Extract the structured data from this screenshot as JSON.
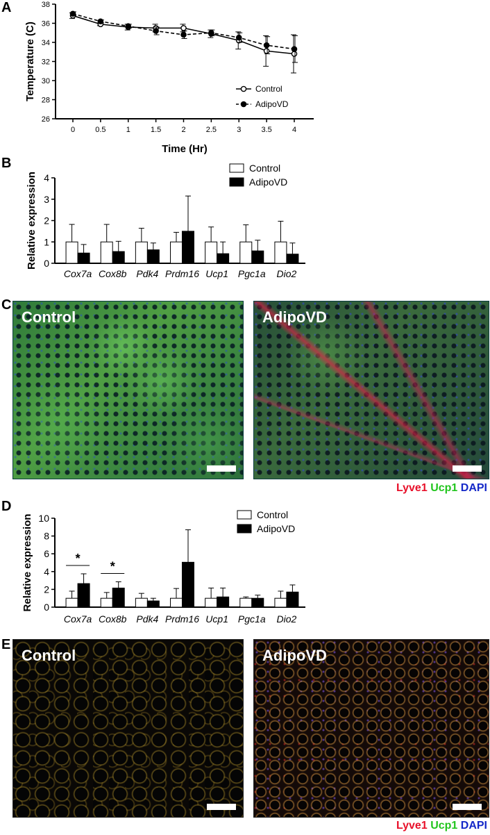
{
  "panels": {
    "a": "A",
    "b": "B",
    "c": "C",
    "d": "D",
    "e": "E"
  },
  "chart_data": [
    {
      "panel": "A",
      "type": "line",
      "xlabel": "Time (Hr)",
      "ylabel": "Temperature (C)",
      "x": [
        0,
        0.5,
        1,
        1.5,
        2,
        2.5,
        3,
        3.5,
        4
      ],
      "xticklabels": [
        "0",
        "0.5",
        "1",
        "1.5",
        "2",
        "2.5",
        "3",
        "3.5",
        "4"
      ],
      "yticks": [
        26,
        28,
        30,
        32,
        34,
        36,
        38
      ],
      "ylim": [
        26,
        38
      ],
      "legend_position": "bottom-right",
      "series": [
        {
          "name": "Control",
          "style": "solid-open-circle",
          "values": [
            36.8,
            35.9,
            35.6,
            35.5,
            35.5,
            34.9,
            34.2,
            33.1,
            32.8
          ],
          "errors": [
            0.3,
            0.15,
            0.3,
            0.4,
            0.4,
            0.4,
            0.9,
            1.6,
            2.0
          ]
        },
        {
          "name": "AdipoVD",
          "style": "dashed-filled-circle",
          "values": [
            37.0,
            36.2,
            35.7,
            35.2,
            34.8,
            35.0,
            34.5,
            33.7,
            33.3
          ],
          "errors": [
            0.2,
            0.15,
            0.2,
            0.4,
            0.4,
            0.3,
            0.5,
            0.9,
            1.4
          ]
        }
      ]
    },
    {
      "panel": "B",
      "type": "bar",
      "ylabel": "Relative expression",
      "categories": [
        "Cox7a",
        "Cox8b",
        "Pdk4",
        "Prdm16",
        "Ucp1",
        "Pgc1a",
        "Dio2"
      ],
      "yticks": [
        0,
        1,
        2,
        3,
        4
      ],
      "ylim": [
        0,
        4
      ],
      "legend_position": "top-right",
      "series": [
        {
          "name": "Control",
          "fill": "white",
          "values": [
            1.0,
            1.0,
            1.0,
            1.0,
            1.0,
            1.0,
            1.0
          ],
          "errors": [
            0.82,
            0.82,
            0.64,
            0.45,
            0.7,
            0.8,
            0.97
          ]
        },
        {
          "name": "AdipoVD",
          "fill": "black",
          "values": [
            0.48,
            0.55,
            0.63,
            1.5,
            0.45,
            0.58,
            0.43
          ],
          "errors": [
            0.4,
            0.48,
            0.32,
            1.65,
            0.55,
            0.5,
            0.52
          ]
        }
      ]
    },
    {
      "panel": "D",
      "type": "bar",
      "ylabel": "Relative expression",
      "categories": [
        "Cox7a",
        "Cox8b",
        "Pdk4",
        "Prdm16",
        "Ucp1",
        "Pgc1a",
        "Dio2"
      ],
      "yticks": [
        0,
        2,
        4,
        6,
        8,
        10
      ],
      "ylim": [
        0,
        10
      ],
      "legend_position": "top-right",
      "significance": [
        {
          "category": "Cox7a",
          "label": "*"
        },
        {
          "category": "Cox8b",
          "label": "*"
        }
      ],
      "series": [
        {
          "name": "Control",
          "fill": "white",
          "values": [
            1.0,
            1.0,
            1.0,
            1.0,
            1.0,
            1.0,
            1.0
          ],
          "errors": [
            0.8,
            0.65,
            0.55,
            1.1,
            1.15,
            0.15,
            0.8
          ]
        },
        {
          "name": "AdipoVD",
          "fill": "black",
          "values": [
            2.65,
            2.15,
            0.7,
            5.05,
            1.15,
            1.0,
            1.7
          ],
          "errors": [
            1.1,
            0.7,
            0.3,
            3.65,
            1.0,
            0.35,
            0.8
          ]
        }
      ]
    }
  ],
  "micrographs": {
    "c": {
      "left_label": "Control",
      "right_label": "AdipoVD"
    },
    "e": {
      "left_label": "Control",
      "right_label": "AdipoVD"
    }
  },
  "stain_legend": {
    "lyve1": "Lyve1",
    "ucp1": "Ucp1",
    "dapi": "DAPI",
    "colors": {
      "lyve1": "#e8102a",
      "ucp1": "#22c51e",
      "dapi": "#1428c8"
    }
  }
}
